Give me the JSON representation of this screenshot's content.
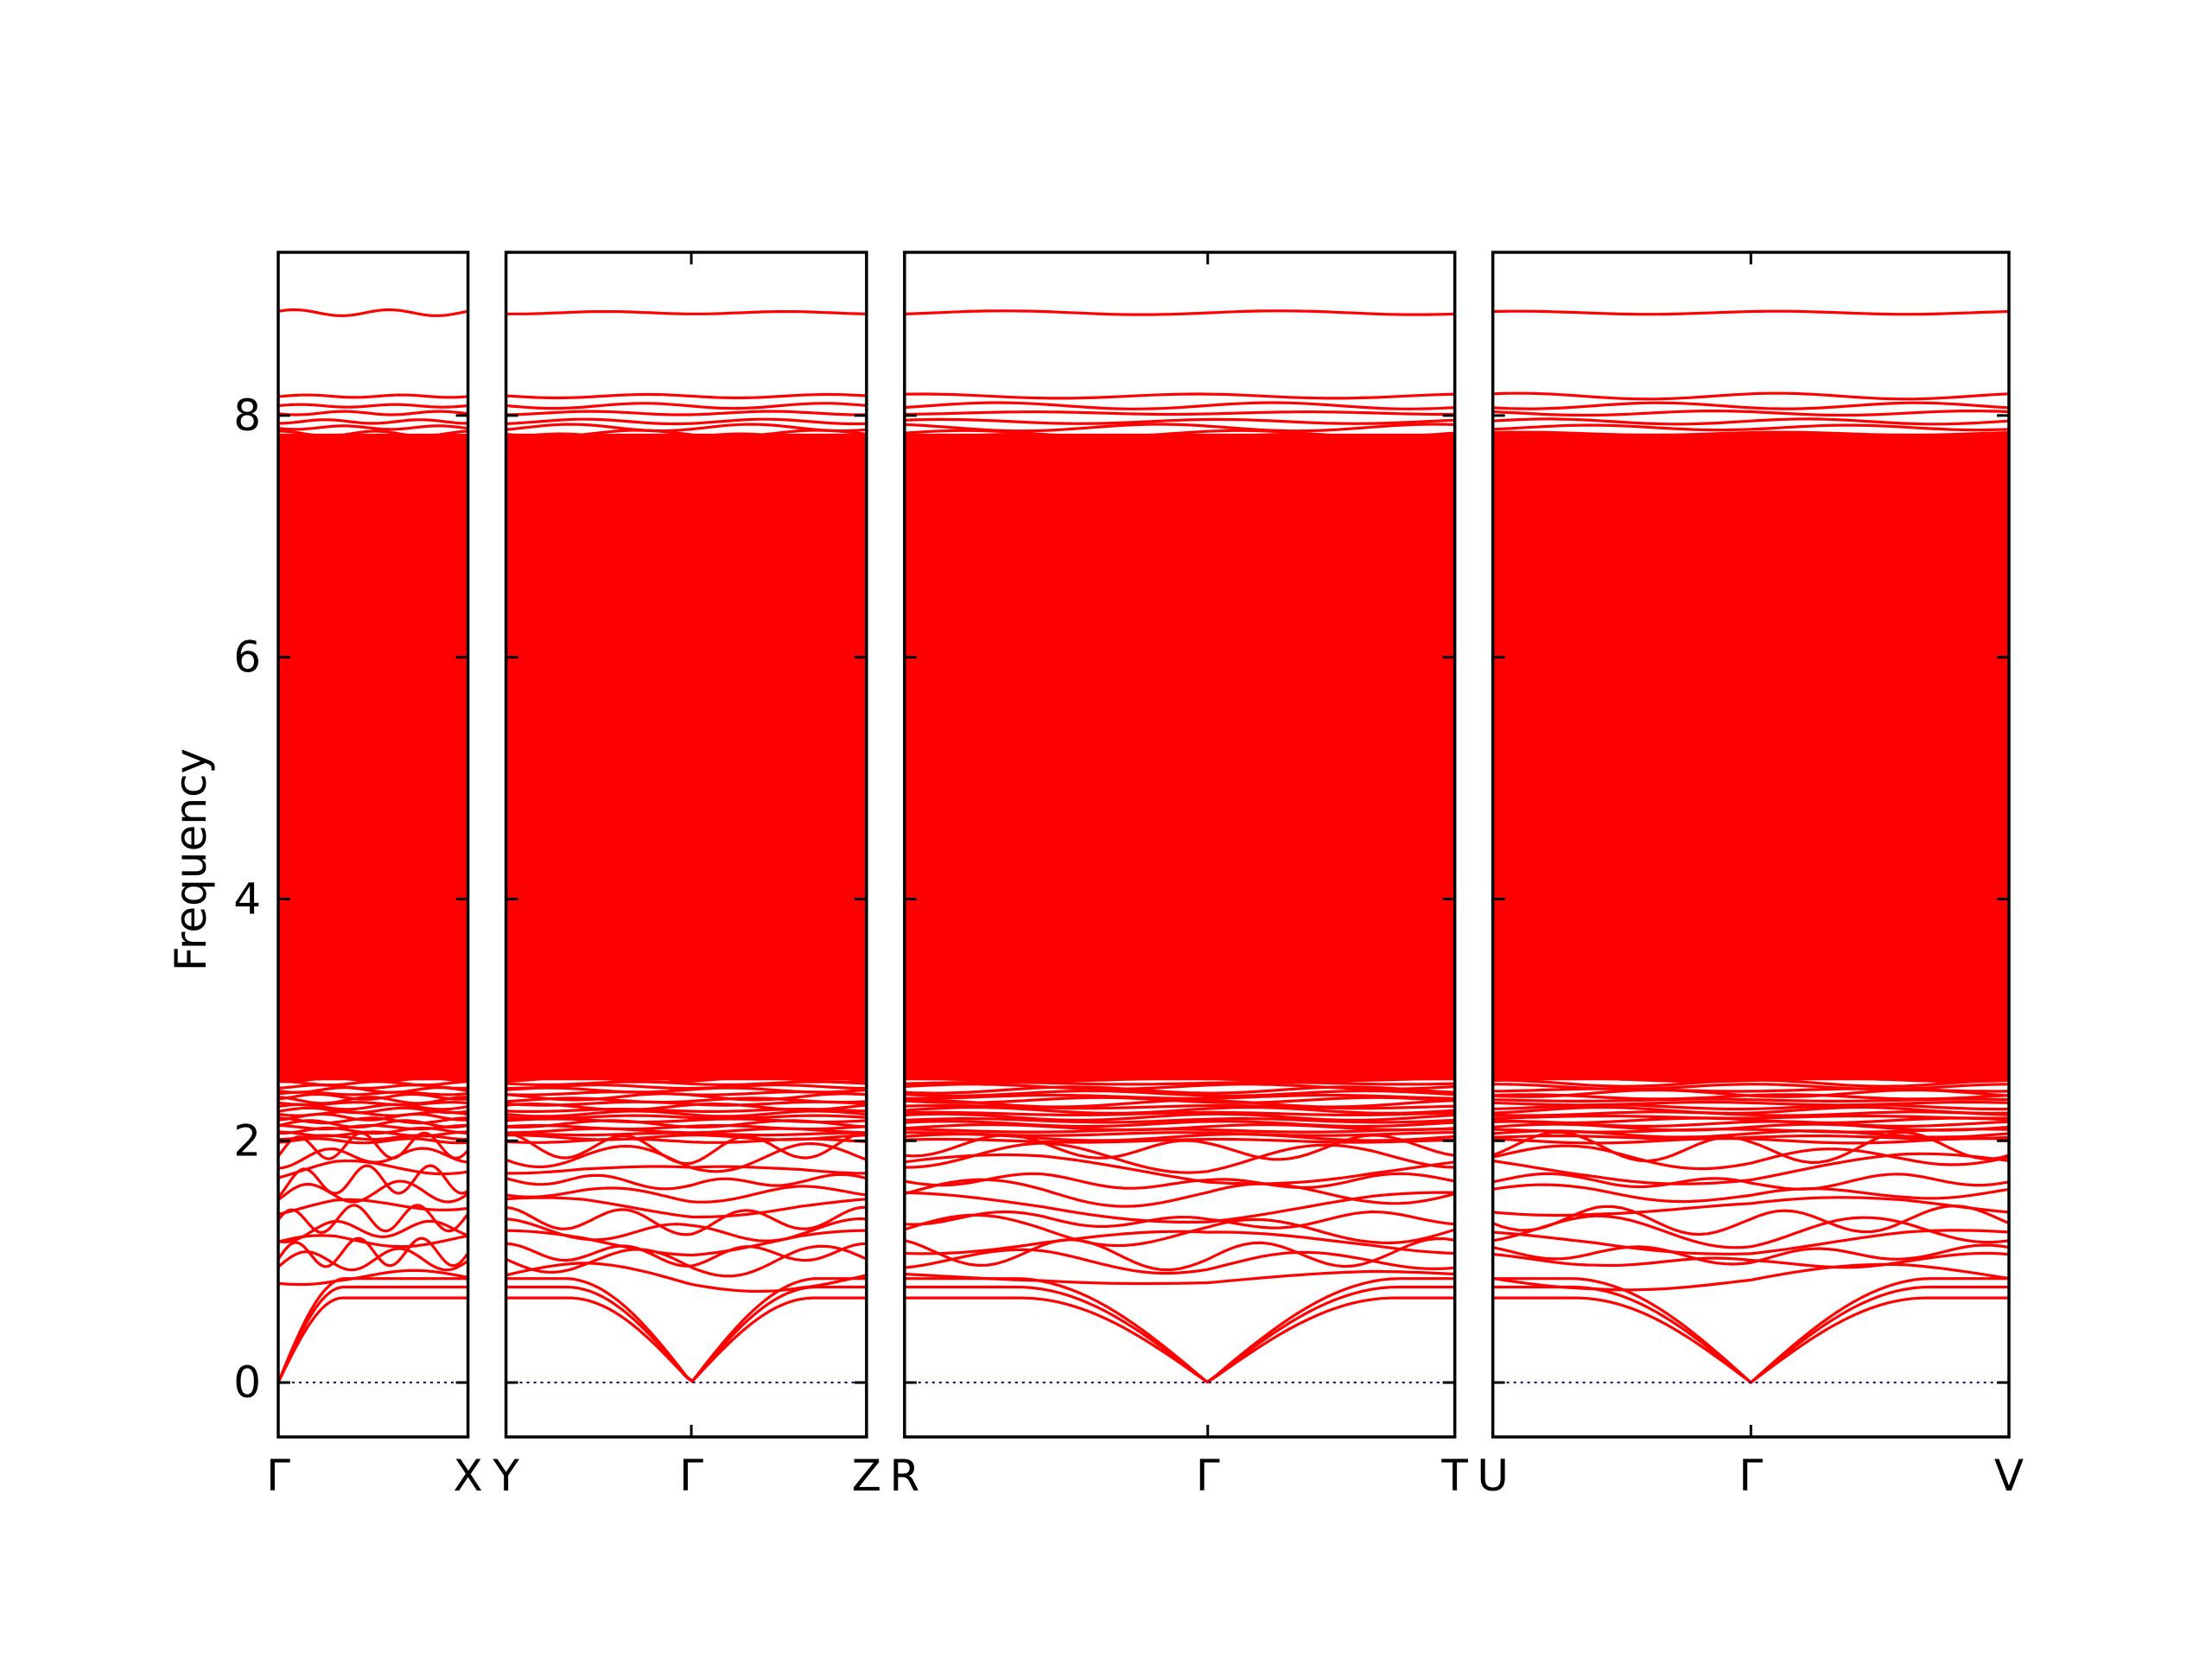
{
  "chart_data": {
    "type": "line",
    "title": "",
    "ylabel": "Frequency",
    "ylim": [
      -0.45,
      9.35
    ],
    "yticks": [
      0,
      2,
      4,
      6,
      8
    ],
    "grid": false,
    "legend": "none",
    "colors": {
      "bands": "#ff0000",
      "zero_line": "#00008b",
      "frame": "#000000"
    },
    "panels": [
      {
        "name": "Γ–X",
        "segment_length": 1.0,
        "start_label": "Γ",
        "end_label": "X",
        "inner_labels": []
      },
      {
        "name": "Y–Γ–Z",
        "segment_length": 1.9,
        "start_label": "Y",
        "end_label": "Z",
        "inner_labels": [
          {
            "label": "Γ",
            "at": 0.514
          }
        ]
      },
      {
        "name": "R–Γ–T",
        "segment_length": 2.9,
        "start_label": "R",
        "end_label": "T",
        "inner_labels": [
          {
            "label": "Γ",
            "at": 0.551
          }
        ]
      },
      {
        "name": "U–Γ–V",
        "segment_length": 2.72,
        "start_label": "U",
        "end_label": "V",
        "inner_labels": [
          {
            "label": "Γ",
            "at": 0.5
          }
        ]
      }
    ],
    "acoustic_max": [
      0.7,
      0.75,
      0.78
    ],
    "optical_low": [
      0.88,
      1.02,
      1.08,
      1.18,
      1.27,
      1.36,
      1.47,
      1.58,
      1.68,
      1.78,
      1.88,
      1.96
    ],
    "band_range_dense": [
      2.0,
      7.85
    ],
    "band_top_cluster": [
      7.9,
      7.95,
      8.02,
      8.08,
      8.16
    ],
    "band_top_isolated": 8.85,
    "zero_line_value": 0
  }
}
